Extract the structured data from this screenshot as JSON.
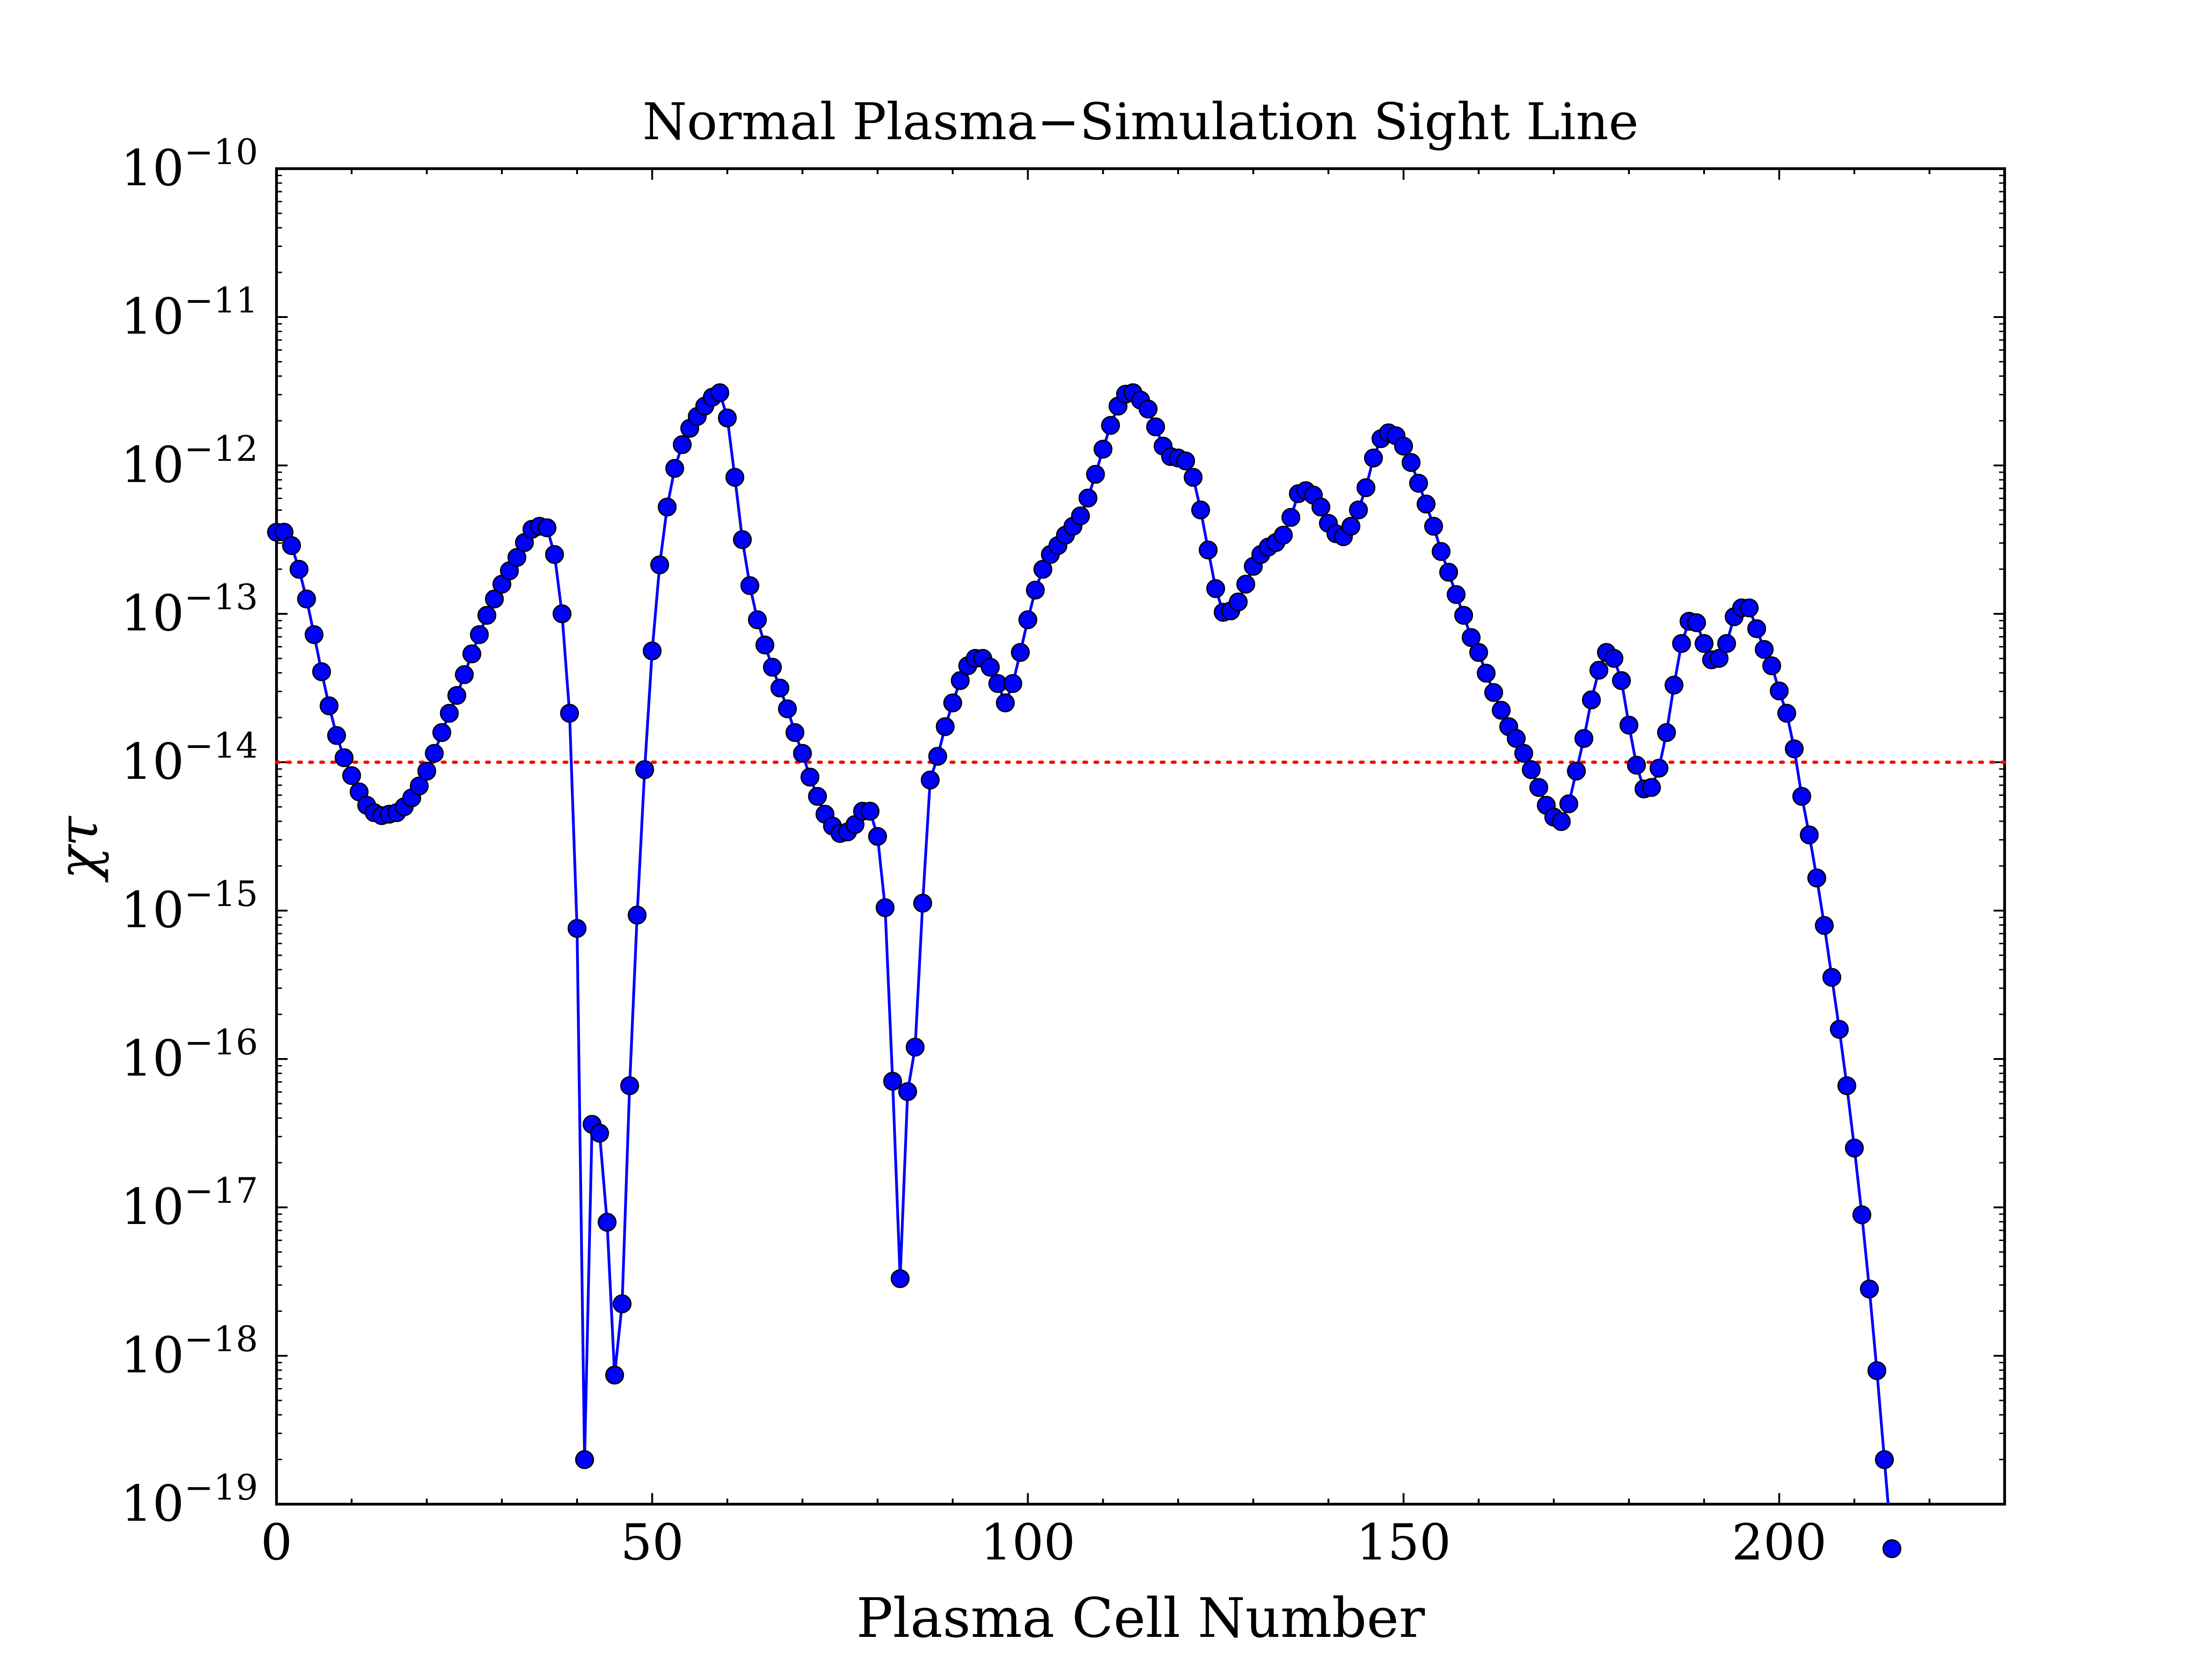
{
  "chart_data": {
    "type": "line",
    "title": "Normal Plasma−Simulation Sight Line",
    "xlabel": "Plasma Cell Number",
    "ylabel": "χτ",
    "xlim": [
      0,
      230
    ],
    "ylim_exponents": [
      -19,
      -10
    ],
    "yscale": "log",
    "x_ticks": [
      "0",
      "50",
      "100",
      "150",
      "200"
    ],
    "x_tick_values": [
      0,
      50,
      100,
      150,
      200
    ],
    "y_tick_exponents": [
      -19,
      -18,
      -17,
      -16,
      -15,
      -14,
      -13,
      -12,
      -11,
      -10
    ],
    "y_tick_base": "10",
    "y_tick_labels": [
      "−19",
      "−18",
      "−17",
      "−16",
      "−15",
      "−14",
      "−13",
      "−12",
      "−11",
      "−10"
    ],
    "threshold": {
      "value_exponent": -14,
      "style": "dotted",
      "color": "#ff0000"
    },
    "series": [
      {
        "name": "χτ",
        "color": "#0000ff",
        "marker_color": "#0000ff",
        "marker_edge": "#000000",
        "log10_values": [
          -12.45,
          -12.45,
          -12.54,
          -12.7,
          -12.9,
          -13.14,
          -13.39,
          -13.62,
          -13.82,
          -13.97,
          -14.09,
          -14.2,
          -14.29,
          -14.34,
          -14.36,
          -14.35,
          -14.34,
          -14.3,
          -14.24,
          -14.16,
          -14.06,
          -13.94,
          -13.8,
          -13.67,
          -13.55,
          -13.41,
          -13.27,
          -13.14,
          -13.01,
          -12.9,
          -12.8,
          -12.71,
          -12.62,
          -12.52,
          -12.43,
          -12.41,
          -12.42,
          -12.6,
          -13.0,
          -13.67,
          -15.12,
          -18.7,
          -16.44,
          -16.5,
          -17.1,
          -18.13,
          -17.65,
          -16.18,
          -15.03,
          -14.05,
          -13.25,
          -12.67,
          -12.28,
          -12.02,
          -11.86,
          -11.75,
          -11.67,
          -11.6,
          -11.54,
          -11.51,
          -11.68,
          -12.08,
          -12.5,
          -12.81,
          -13.04,
          -13.21,
          -13.36,
          -13.5,
          -13.64,
          -13.8,
          -13.94,
          -14.1,
          -14.23,
          -14.35,
          -14.43,
          -14.48,
          -14.47,
          -14.42,
          -14.33,
          -14.33,
          -14.5,
          -14.98,
          -16.15,
          -17.48,
          -16.22,
          -15.92,
          -14.95,
          -14.12,
          -13.96,
          -13.76,
          -13.6,
          -13.45,
          -13.35,
          -13.3,
          -13.3,
          -13.36,
          -13.47,
          -13.6,
          -13.47,
          -13.26,
          -13.04,
          -12.84,
          -12.7,
          -12.6,
          -12.54,
          -12.47,
          -12.41,
          -12.34,
          -12.22,
          -12.06,
          -11.89,
          -11.73,
          -11.6,
          -11.52,
          -11.51,
          -11.56,
          -11.62,
          -11.74,
          -11.87,
          -11.94,
          -11.95,
          -11.97,
          -12.08,
          -12.3,
          -12.57,
          -12.83,
          -12.99,
          -12.98,
          -12.92,
          -12.8,
          -12.68,
          -12.6,
          -12.55,
          -12.52,
          -12.47,
          -12.35,
          -12.19,
          -12.17,
          -12.2,
          -12.28,
          -12.39,
          -12.46,
          -12.48,
          -12.41,
          -12.3,
          -12.15,
          -11.95,
          -11.82,
          -11.78,
          -11.8,
          -11.87,
          -11.98,
          -12.12,
          -12.26,
          -12.41,
          -12.58,
          -12.72,
          -12.87,
          -13.01,
          -13.16,
          -13.26,
          -13.4,
          -13.53,
          -13.65,
          -13.76,
          -13.84,
          -13.94,
          -14.05,
          -14.17,
          -14.29,
          -14.37,
          -14.4,
          -14.28,
          -14.06,
          -13.84,
          -13.58,
          -13.38,
          -13.26,
          -13.3,
          -13.45,
          -13.75,
          -14.02,
          -14.18,
          -14.17,
          -14.04,
          -13.8,
          -13.48,
          -13.2,
          -13.05,
          -13.06,
          -13.2,
          -13.31,
          -13.3,
          -13.2,
          -13.02,
          -12.96,
          -12.96,
          -13.1,
          -13.24,
          -13.35,
          -13.52,
          -13.67,
          -13.91,
          -14.23,
          -14.49,
          -14.78,
          -15.1,
          -15.45,
          -15.8,
          -16.18,
          -16.6,
          -17.05,
          -17.55,
          -18.1,
          -18.7,
          -19.3
        ]
      }
    ]
  }
}
